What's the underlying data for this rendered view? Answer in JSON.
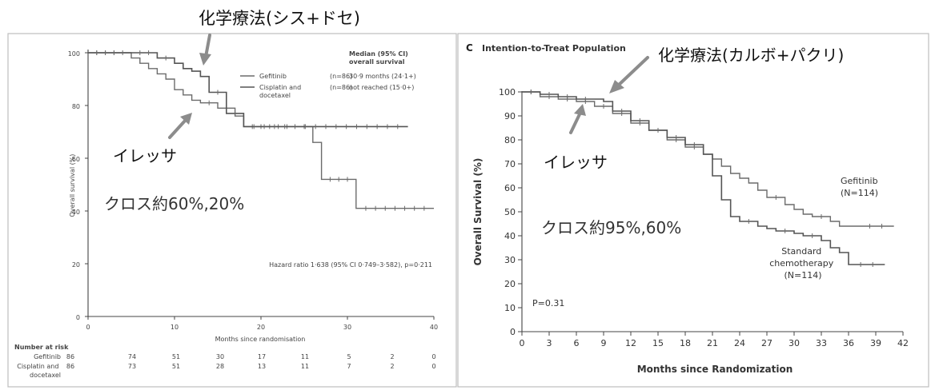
{
  "annotations": {
    "left_chemo_label": "化学療法(シス+ドセ)",
    "left_iressa_label": "イレッサ",
    "left_cross_label": "クロス約60%,20%",
    "right_chemo_label": "化学療法(カルボ+パクリ)",
    "right_iressa_label": "イレッサ",
    "right_cross_label": "クロス約95%,60%",
    "arrow_color": "#8c8c8c"
  },
  "chart_data": [
    {
      "type": "line",
      "title": "",
      "xlabel": "Months since randomisation",
      "ylabel": "Overall survival (%)",
      "xlim": [
        0,
        40
      ],
      "ylim": [
        0,
        100
      ],
      "x_ticks": [
        "0",
        "10",
        "20",
        "30",
        "40"
      ],
      "y_ticks": [
        "0",
        "20",
        "40",
        "60",
        "80",
        "100"
      ],
      "legend_header": [
        "Median (95% CI)",
        "overall survival"
      ],
      "legend": [
        {
          "name": "Gefitinib",
          "n": "(n=86)",
          "median": "30·9 months (24·1+)"
        },
        {
          "name": "Cisplatin and docetaxel",
          "n": "(n=86)",
          "median": "not reached (15·0+)"
        }
      ],
      "hazard_ratio_text": "Hazard ratio 1·638 (95% CI 0·749–3·582), p=0·211",
      "series": [
        {
          "name": "Gefitinib",
          "x": [
            0,
            4,
            5,
            6,
            7,
            8,
            9,
            10,
            11,
            12,
            13,
            15,
            17,
            18,
            24,
            26,
            27,
            31,
            40
          ],
          "y": [
            100,
            100,
            98,
            96,
            94,
            92,
            90,
            86,
            84,
            82,
            81,
            79,
            76,
            72,
            72,
            66,
            52,
            41,
            41
          ]
        },
        {
          "name": "Cisplatin and docetaxel",
          "x": [
            0,
            5,
            8,
            10,
            11,
            12,
            13,
            14,
            16,
            18,
            37
          ],
          "y": [
            100,
            100,
            98,
            96,
            94,
            93,
            91,
            85,
            77,
            72,
            72
          ]
        }
      ],
      "risk_table": {
        "header": "Number at risk",
        "rows": [
          {
            "label": "Gefitinib",
            "values": [
              "86",
              "74",
              "51",
              "30",
              "17",
              "11",
              "5",
              "2",
              "0"
            ]
          },
          {
            "label": "Cisplatin and docetaxel",
            "values": [
              "86",
              "73",
              "51",
              "28",
              "13",
              "11",
              "7",
              "2",
              "0"
            ]
          }
        ]
      }
    },
    {
      "type": "line",
      "title": "Intention-to-Treat Population",
      "panel_letter": "C",
      "xlabel": "Months since Randomization",
      "ylabel": "Overall Survival (%)",
      "xlim": [
        0,
        42
      ],
      "ylim": [
        0,
        100
      ],
      "x_ticks": [
        "0",
        "3",
        "6",
        "9",
        "12",
        "15",
        "18",
        "21",
        "24",
        "27",
        "30",
        "33",
        "36",
        "39",
        "42"
      ],
      "y_ticks": [
        "0",
        "10",
        "20",
        "30",
        "40",
        "50",
        "60",
        "70",
        "80",
        "90",
        "100"
      ],
      "p_value": "P=0.31",
      "series": [
        {
          "name": "Gefitinib",
          "label_lines": [
            "Gefitinib",
            "(N=114)"
          ],
          "x": [
            0,
            2,
            4,
            6,
            8,
            10,
            12,
            14,
            16,
            18,
            20,
            21,
            22,
            23,
            24,
            25,
            26,
            27,
            29,
            30,
            31,
            32,
            34,
            35,
            36,
            37,
            41
          ],
          "y": [
            100,
            98,
            97,
            96,
            94,
            91,
            87,
            84,
            80,
            77,
            74,
            72,
            69,
            66,
            64,
            62,
            59,
            56,
            53,
            51,
            49,
            48,
            46,
            44,
            44,
            44,
            44
          ]
        },
        {
          "name": "Standard chemotherapy",
          "label_lines": [
            "Standard",
            "chemotherapy",
            "(N=114)"
          ],
          "x": [
            0,
            2,
            4,
            6,
            8,
            9,
            10,
            12,
            14,
            16,
            18,
            20,
            21,
            22,
            23,
            24,
            26,
            27,
            28,
            30,
            31,
            33,
            34,
            35,
            36,
            40
          ],
          "y": [
            100,
            99,
            98,
            97,
            97,
            96,
            92,
            88,
            84,
            81,
            78,
            74,
            65,
            55,
            48,
            46,
            44,
            43,
            42,
            41,
            40,
            38,
            35,
            33,
            28,
            28
          ]
        }
      ]
    }
  ]
}
